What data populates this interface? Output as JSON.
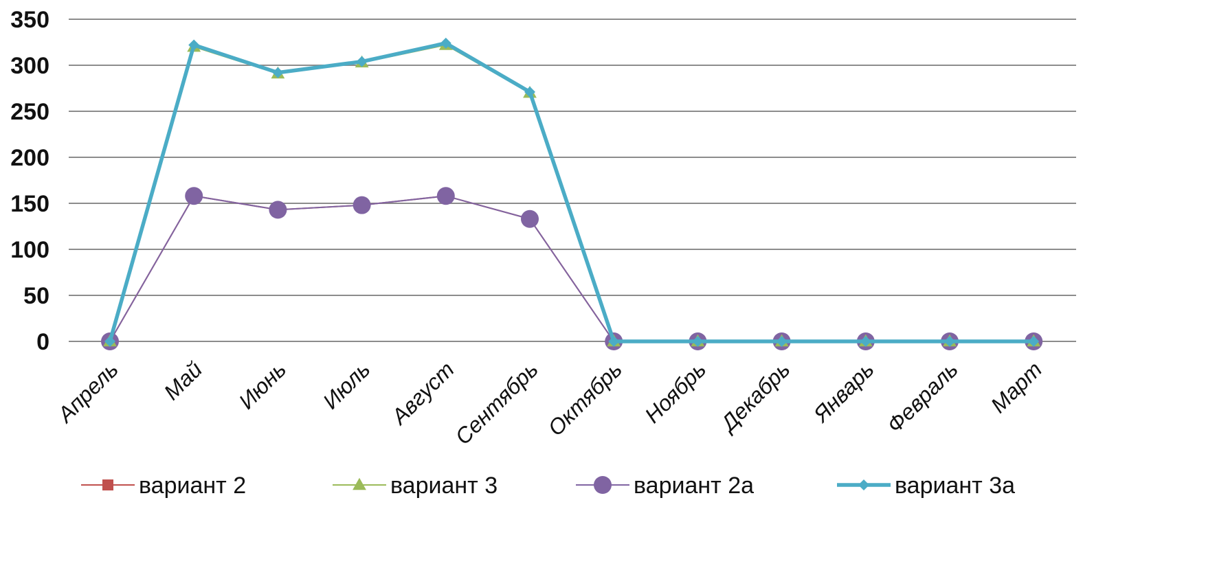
{
  "chart_data": {
    "type": "line",
    "categories": [
      "Апрель",
      "Май",
      "Июнь",
      "Июль",
      "Август",
      "Сентябрь",
      "Октябрь",
      "Ноябрь",
      "Декабрь",
      "Январь",
      "Февраль",
      "Март"
    ],
    "ylim": [
      0,
      350
    ],
    "yticks": [
      0,
      50,
      100,
      150,
      200,
      250,
      300,
      350
    ],
    "grid": true,
    "legend_position": "bottom",
    "series": [
      {
        "name": "вариант 2",
        "marker": "square",
        "color": "#c0504d",
        "values": [
          0,
          158,
          143,
          148,
          158,
          133,
          0,
          0,
          0,
          0,
          0,
          0
        ]
      },
      {
        "name": "вариант 3",
        "marker": "triangle",
        "color": "#9bbb59",
        "values": [
          0,
          320,
          291,
          303,
          322,
          270,
          0,
          0,
          0,
          0,
          0,
          0
        ]
      },
      {
        "name": "вариант 2а",
        "marker": "circle",
        "color": "#8064a2",
        "values": [
          0,
          158,
          143,
          148,
          158,
          133,
          0,
          0,
          0,
          0,
          0,
          0
        ]
      },
      {
        "name": "вариант 3а",
        "marker": "diamond",
        "color": "#4bacc6",
        "values": [
          0,
          322,
          292,
          304,
          324,
          271,
          0,
          0,
          0,
          0,
          0,
          0
        ]
      }
    ]
  }
}
